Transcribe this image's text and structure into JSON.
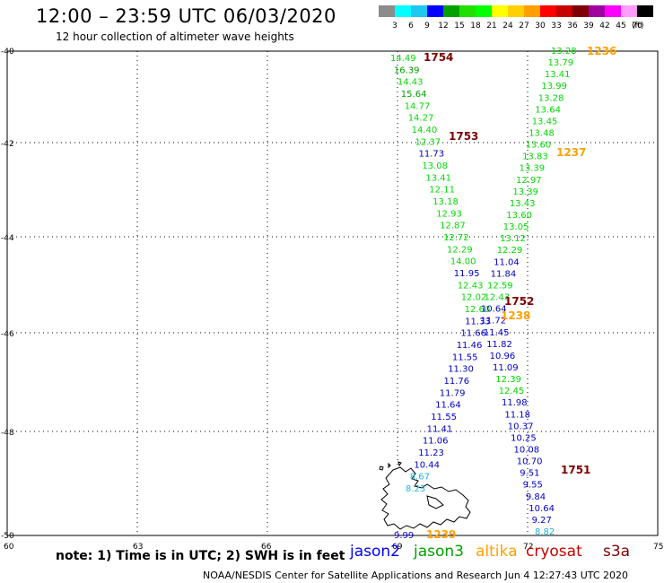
{
  "header": {
    "title": "12:00 – 23:59 UTC 06/03/2020",
    "subtitle": "12 hour collection of altimeter wave heights"
  },
  "color_scale": {
    "unit": "(ft)",
    "items": [
      {
        "label": "3",
        "color": "#8c8c8c"
      },
      {
        "label": "6",
        "color": "#00ffff"
      },
      {
        "label": "9",
        "color": "#1ec8f0"
      },
      {
        "label": "12",
        "color": "#0000ff"
      },
      {
        "label": "15",
        "color": "#00a000"
      },
      {
        "label": "18",
        "color": "#20e000"
      },
      {
        "label": "21",
        "color": "#00ff00"
      },
      {
        "label": "24",
        "color": "#ffff00"
      },
      {
        "label": "27",
        "color": "#ffd000"
      },
      {
        "label": "30",
        "color": "#ffa000"
      },
      {
        "label": "33",
        "color": "#ff0000"
      },
      {
        "label": "36",
        "color": "#c80000"
      },
      {
        "label": "39",
        "color": "#800000"
      },
      {
        "label": "42",
        "color": "#a000a0"
      },
      {
        "label": "45",
        "color": "#ff00ff"
      },
      {
        "label": "70",
        "color": "#ff9cff"
      },
      {
        "label": "",
        "color": "#000000"
      }
    ]
  },
  "axes": {
    "y_labels": [
      "-40",
      "-42",
      "-44",
      "-46",
      "-48",
      "-50"
    ],
    "x_labels": [
      "60",
      "63",
      "66",
      "69",
      "72",
      "75"
    ]
  },
  "tracks": [
    {
      "points": [
        {
          "v": "14.49",
          "c": "#00d800"
        },
        {
          "v": "16.39",
          "c": "#00a000"
        },
        {
          "v": "14.43",
          "c": "#00d800"
        },
        {
          "v": "15.64",
          "c": "#00a000"
        },
        {
          "v": "14.77",
          "c": "#00d800"
        },
        {
          "v": "14.27",
          "c": "#00d800"
        },
        {
          "v": "14.40",
          "c": "#00d800"
        },
        {
          "v": "12.37",
          "c": "#00d800"
        },
        {
          "v": "11.73",
          "c": "#0000c8"
        },
        {
          "v": "13.08",
          "c": "#00d800"
        },
        {
          "v": "13.41",
          "c": "#00d800"
        },
        {
          "v": "12.11",
          "c": "#00d800"
        },
        {
          "v": "13.18",
          "c": "#00d800"
        },
        {
          "v": "12.93",
          "c": "#00d800"
        },
        {
          "v": "12.87",
          "c": "#00d800"
        },
        {
          "v": "12.72",
          "c": "#00d800"
        },
        {
          "v": "12.29",
          "c": "#00d800"
        },
        {
          "v": "14.00",
          "c": "#00d800"
        },
        {
          "v": "11.95",
          "c": "#0000c8"
        },
        {
          "v": "12.43",
          "c": "#00d800"
        },
        {
          "v": "12.02",
          "c": "#00d800"
        },
        {
          "v": "12.60",
          "c": "#00d800"
        },
        {
          "v": "11.33",
          "c": "#0000c8"
        },
        {
          "v": "11.66",
          "c": "#0000c8"
        },
        {
          "v": "11.46",
          "c": "#0000c8"
        },
        {
          "v": "11.55",
          "c": "#0000c8"
        },
        {
          "v": "11.30",
          "c": "#0000c8"
        },
        {
          "v": "11.76",
          "c": "#0000c8"
        },
        {
          "v": "11.79",
          "c": "#0000c8"
        },
        {
          "v": "11.64",
          "c": "#0000c8"
        },
        {
          "v": "11.55",
          "c": "#0000c8"
        },
        {
          "v": "11.41",
          "c": "#0000c8"
        },
        {
          "v": "11.06",
          "c": "#0000c8"
        },
        {
          "v": "11.23",
          "c": "#0000c8"
        },
        {
          "v": "10.44",
          "c": "#0000c8"
        },
        {
          "v": "8.67",
          "c": "#1eb4dc"
        },
        {
          "v": "8.23",
          "c": "#1eb4dc"
        }
      ]
    },
    {
      "points": [
        {
          "v": "13.28",
          "c": "#00d800"
        },
        {
          "v": "13.79",
          "c": "#00d800"
        },
        {
          "v": "13.41",
          "c": "#00d800"
        },
        {
          "v": "13.99",
          "c": "#00d800"
        },
        {
          "v": "13.28",
          "c": "#00d800"
        },
        {
          "v": "13.64",
          "c": "#00d800"
        },
        {
          "v": "13.45",
          "c": "#00d800"
        },
        {
          "v": "13.48",
          "c": "#00d800"
        },
        {
          "v": "13.60",
          "c": "#00d800"
        },
        {
          "v": "13.83",
          "c": "#00d800"
        },
        {
          "v": "13.39",
          "c": "#00d800"
        },
        {
          "v": "12.97",
          "c": "#00d800"
        },
        {
          "v": "13.39",
          "c": "#00d800"
        },
        {
          "v": "13.43",
          "c": "#00d800"
        },
        {
          "v": "13.60",
          "c": "#00d800"
        },
        {
          "v": "13.05",
          "c": "#00d800"
        },
        {
          "v": "13.12",
          "c": "#00d800"
        },
        {
          "v": "12.29",
          "c": "#00d800"
        },
        {
          "v": "11.04",
          "c": "#0000c8"
        },
        {
          "v": "11.84",
          "c": "#0000c8"
        },
        {
          "v": "12.59",
          "c": "#00d800"
        },
        {
          "v": "12.43",
          "c": "#00d800"
        },
        {
          "v": "10.64",
          "c": "#0000c8"
        },
        {
          "v": "11.72",
          "c": "#0000c8"
        },
        {
          "v": "11.45",
          "c": "#0000c8"
        },
        {
          "v": "11.82",
          "c": "#0000c8"
        },
        {
          "v": "10.96",
          "c": "#0000c8"
        },
        {
          "v": "11.09",
          "c": "#0000c8"
        },
        {
          "v": "12.39",
          "c": "#00d800"
        },
        {
          "v": "12.45",
          "c": "#00d800"
        },
        {
          "v": "11.98",
          "c": "#0000c8"
        },
        {
          "v": "11.18",
          "c": "#0000c8"
        },
        {
          "v": "10.37",
          "c": "#0000c8"
        },
        {
          "v": "10.25",
          "c": "#0000c8"
        },
        {
          "v": "10.08",
          "c": "#0000c8"
        },
        {
          "v": "10.70",
          "c": "#0000c8"
        },
        {
          "v": "9.51",
          "c": "#0000c8"
        },
        {
          "v": "9.55",
          "c": "#0000c8"
        },
        {
          "v": "9.84",
          "c": "#0000c8"
        },
        {
          "v": "10.64",
          "c": "#0000c8"
        },
        {
          "v": "9.27",
          "c": "#0000c8"
        },
        {
          "v": "8.82",
          "c": "#1eb4dc"
        }
      ]
    },
    {
      "points": [
        {
          "v": "9.99",
          "c": "#0000c8"
        }
      ]
    }
  ],
  "pass_times": [
    {
      "label": "1754",
      "color": "#800000"
    },
    {
      "label": "1753",
      "color": "#800000"
    },
    {
      "label": "1236",
      "color": "#ffa000"
    },
    {
      "label": "1237",
      "color": "#ffa000"
    },
    {
      "label": "1752",
      "color": "#800000"
    },
    {
      "label": "1238",
      "color": "#ffa000"
    },
    {
      "label": "1751",
      "color": "#800000"
    },
    {
      "label": "1239",
      "color": "#ffa000"
    }
  ],
  "footer": {
    "note": "note:  1) Time is in UTC;  2) SWH is in feet",
    "credit": "NOAA/NESDIS Center for Satellite Applications and Research    Jun  4 12:27:43 UTC 2020"
  },
  "satellites": [
    {
      "label": "jason2",
      "color": "#0000ff"
    },
    {
      "label": "jason3",
      "color": "#00a000"
    },
    {
      "label": "altika",
      "color": "#ffa000"
    },
    {
      "label": "cryosat",
      "color": "#c80000"
    },
    {
      "label": "s3a",
      "color": "#800000"
    }
  ]
}
